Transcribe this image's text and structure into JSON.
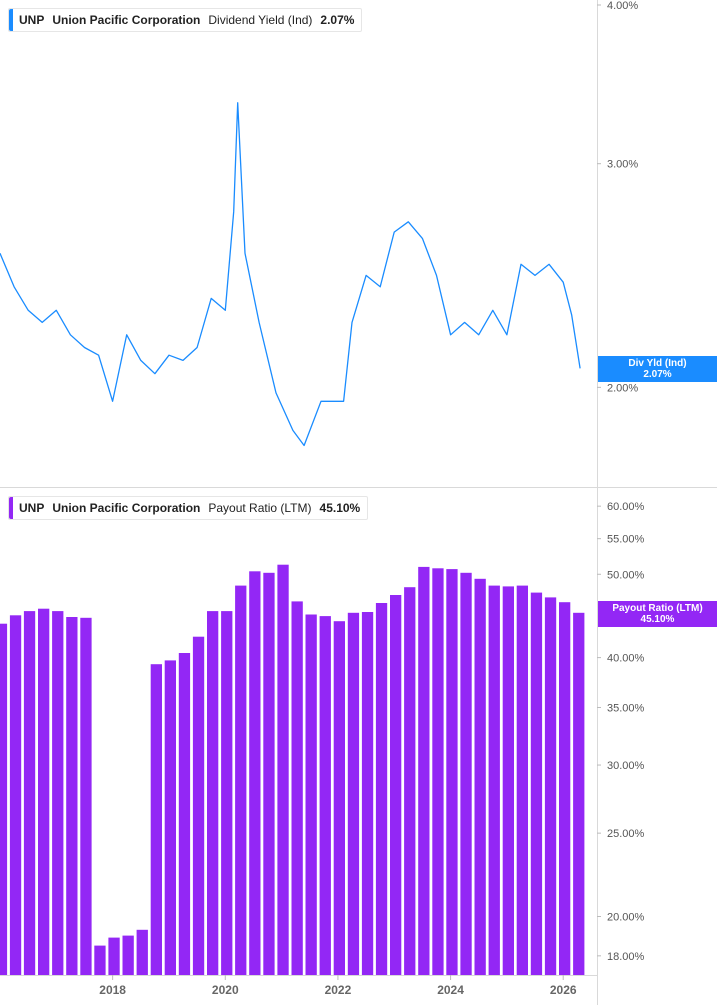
{
  "panels": [
    {
      "ticker": "UNP",
      "company": "Union Pacific Corporation",
      "metric": "Dividend Yield (Ind)",
      "value": "2.07%",
      "flag_label": "Div Yld (Ind)",
      "flag_value": "2.07%",
      "color": "#1a8cff"
    },
    {
      "ticker": "UNP",
      "company": "Union Pacific Corporation",
      "metric": "Payout Ratio (LTM)",
      "value": "45.10%",
      "flag_label": "Payout Ratio (LTM)",
      "flag_value": "45.10%",
      "color": "#9327f5"
    }
  ],
  "chart_data": [
    {
      "type": "line",
      "series": [
        {
          "values_note": "",
          "x": [
            2016.0,
            2016.25,
            2016.5,
            2016.75,
            2017.0,
            2017.25,
            2017.5,
            2017.75,
            2018.0,
            2018.25,
            2018.5,
            2018.75,
            2019.0,
            2019.25,
            2019.5,
            2019.75,
            2020.0,
            2020.15,
            2020.22,
            2020.35,
            2020.6,
            2020.9,
            2021.2,
            2021.4,
            2021.7,
            2021.9,
            2022.1,
            2022.25,
            2022.5,
            2022.75,
            2023.0,
            2023.25,
            2023.5,
            2023.75,
            2024.0,
            2024.25,
            2024.5,
            2024.75,
            2025.0,
            2025.25,
            2025.5,
            2025.75,
            2026.0,
            2026.15,
            2026.3
          ],
          "y": [
            2.55,
            2.4,
            2.3,
            2.25,
            2.3,
            2.2,
            2.15,
            2.12,
            1.95,
            2.2,
            2.1,
            2.05,
            2.12,
            2.1,
            2.15,
            2.35,
            2.3,
            2.75,
            3.35,
            2.55,
            2.25,
            1.98,
            1.85,
            1.8,
            1.95,
            1.95,
            1.95,
            2.25,
            2.45,
            2.4,
            2.65,
            2.7,
            2.62,
            2.45,
            2.2,
            2.25,
            2.2,
            2.3,
            2.2,
            2.5,
            2.45,
            2.5,
            2.42,
            2.28,
            2.07
          ]
        }
      ],
      "yscale": "log",
      "ylim": [
        1.7,
        4.0
      ],
      "xlim": [
        2016.0,
        2026.6
      ],
      "y_ticks": [
        "4.00%",
        "3.00%",
        "2.00%"
      ],
      "grid": false
    },
    {
      "type": "bar",
      "x": [
        2016.0,
        2016.25,
        2016.5,
        2016.75,
        2017.0,
        2017.25,
        2017.5,
        2017.75,
        2018.0,
        2018.25,
        2018.5,
        2018.75,
        2019.0,
        2019.25,
        2019.5,
        2019.75,
        2020.0,
        2020.25,
        2020.5,
        2020.75,
        2021.0,
        2021.25,
        2021.5,
        2021.75,
        2022.0,
        2022.25,
        2022.5,
        2022.75,
        2023.0,
        2023.25,
        2023.5,
        2023.75,
        2024.0,
        2024.25,
        2024.5,
        2024.75,
        2025.0,
        2025.25,
        2025.5,
        2025.75,
        2026.0,
        2026.25
      ],
      "values": [
        43.8,
        44.8,
        45.3,
        45.6,
        45.3,
        44.6,
        44.5,
        18.5,
        18.9,
        19.0,
        19.3,
        39.3,
        39.7,
        40.5,
        42.3,
        45.3,
        45.3,
        48.5,
        50.4,
        50.2,
        51.3,
        46.5,
        44.9,
        44.7,
        44.1,
        45.1,
        45.2,
        46.3,
        47.3,
        48.3,
        51.0,
        50.8,
        50.7,
        50.2,
        49.4,
        48.5,
        48.4,
        48.5,
        47.6,
        47.0,
        46.4,
        45.1
      ],
      "yscale": "log",
      "ylim": [
        17.1,
        61.0
      ],
      "xlim": [
        2016.0,
        2026.6
      ],
      "y_ticks": [
        "60.00%",
        "55.00%",
        "50.00%",
        "40.00%",
        "35.00%",
        "30.00%",
        "25.00%",
        "20.00%",
        "18.00%"
      ],
      "x_ticks": [
        "2018",
        "2020",
        "2022",
        "2024",
        "2026"
      ],
      "grid": false
    }
  ]
}
